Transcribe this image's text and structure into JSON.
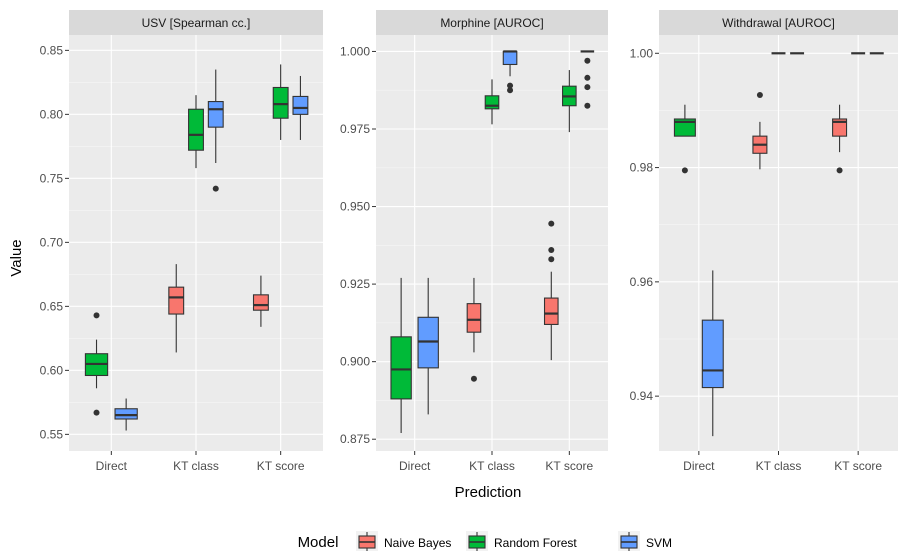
{
  "chart_data": {
    "type": "boxplot",
    "ylabel": "Value",
    "xlabel": "Prediction",
    "legend": {
      "title": "Model",
      "position": "bottom",
      "entries": [
        {
          "label": "Naive Bayes",
          "color": "#F8766D"
        },
        {
          "label": "Random Forest",
          "color": "#00BA38"
        },
        {
          "label": "SVM",
          "color": "#619CFF"
        }
      ]
    },
    "panels": [
      {
        "title": "USV [Spearman cc.]",
        "ylim": [
          0.537,
          0.862
        ],
        "yticks": [
          0.55,
          0.6,
          0.65,
          0.7,
          0.75,
          0.8,
          0.85
        ],
        "yticklabels": [
          "0.55",
          "0.60",
          "0.65",
          "0.70",
          "0.75",
          "0.80",
          "0.85"
        ],
        "categories": [
          "Direct",
          "KT class",
          "KT score"
        ],
        "boxes": [
          {
            "category": "Direct",
            "model": "Random Forest",
            "min": 0.586,
            "q1": 0.596,
            "median": 0.605,
            "q3": 0.613,
            "max": 0.624,
            "outliers": [
              0.643,
              0.567
            ]
          },
          {
            "category": "Direct",
            "model": "SVM",
            "min": 0.553,
            "q1": 0.562,
            "median": 0.565,
            "q3": 0.57,
            "max": 0.578,
            "outliers": []
          },
          {
            "category": "KT class",
            "model": "Naive Bayes",
            "min": 0.614,
            "q1": 0.644,
            "median": 0.657,
            "q3": 0.665,
            "max": 0.683,
            "outliers": []
          },
          {
            "category": "KT class",
            "model": "Random Forest",
            "min": 0.758,
            "q1": 0.772,
            "median": 0.784,
            "q3": 0.804,
            "max": 0.815,
            "outliers": []
          },
          {
            "category": "KT class",
            "model": "SVM",
            "min": 0.762,
            "q1": 0.79,
            "median": 0.804,
            "q3": 0.81,
            "max": 0.835,
            "outliers": [
              0.742
            ]
          },
          {
            "category": "KT score",
            "model": "Naive Bayes",
            "min": 0.634,
            "q1": 0.647,
            "median": 0.651,
            "q3": 0.659,
            "max": 0.674,
            "outliers": []
          },
          {
            "category": "KT score",
            "model": "Random Forest",
            "min": 0.78,
            "q1": 0.797,
            "median": 0.808,
            "q3": 0.821,
            "max": 0.839,
            "outliers": []
          },
          {
            "category": "KT score",
            "model": "SVM",
            "min": 0.78,
            "q1": 0.8,
            "median": 0.805,
            "q3": 0.814,
            "max": 0.83,
            "outliers": []
          }
        ]
      },
      {
        "title": "Morphine [AUROC]",
        "ylim": [
          0.8712,
          1.0053
        ],
        "yticks": [
          0.875,
          0.9,
          0.925,
          0.95,
          0.975,
          1.0
        ],
        "yticklabels": [
          "0.875",
          "0.900",
          "0.925",
          "0.950",
          "0.975",
          "1.000"
        ],
        "categories": [
          "Direct",
          "KT class",
          "KT score"
        ],
        "boxes": [
          {
            "category": "Direct",
            "model": "Random Forest",
            "min": 0.877,
            "q1": 0.888,
            "median": 0.8975,
            "q3": 0.908,
            "max": 0.927,
            "outliers": []
          },
          {
            "category": "Direct",
            "model": "SVM",
            "min": 0.883,
            "q1": 0.898,
            "median": 0.9065,
            "q3": 0.9143,
            "max": 0.927,
            "outliers": []
          },
          {
            "category": "KT class",
            "model": "Naive Bayes",
            "min": 0.903,
            "q1": 0.9095,
            "median": 0.9135,
            "q3": 0.9187,
            "max": 0.927,
            "outliers": [
              0.8945
            ]
          },
          {
            "category": "KT class",
            "model": "Random Forest",
            "min": 0.9765,
            "q1": 0.9815,
            "median": 0.9825,
            "q3": 0.9857,
            "max": 0.991,
            "outliers": []
          },
          {
            "category": "KT class",
            "model": "SVM",
            "min": 0.992,
            "q1": 0.9958,
            "median": 1.0,
            "q3": 1.0,
            "max": 1.0,
            "outliers": [
              0.9875,
              0.989
            ]
          },
          {
            "category": "KT score",
            "model": "Naive Bayes",
            "min": 0.9005,
            "q1": 0.912,
            "median": 0.9155,
            "q3": 0.9205,
            "max": 0.929,
            "outliers": [
              0.933,
              0.936,
              0.9445
            ]
          },
          {
            "category": "KT score",
            "model": "Random Forest",
            "min": 0.974,
            "q1": 0.9825,
            "median": 0.9855,
            "q3": 0.9888,
            "max": 0.994,
            "outliers": []
          },
          {
            "category": "KT score",
            "model": "SVM",
            "min": 1.0,
            "q1": 1.0,
            "median": 1.0,
            "q3": 1.0,
            "max": 1.0,
            "outliers": [
              0.997,
              0.9885,
              0.9915,
              0.9825
            ]
          }
        ]
      },
      {
        "title": "Withdrawal [AUROC]",
        "ylim": [
          0.9304,
          1.0032
        ],
        "yticks": [
          0.94,
          0.96,
          0.98,
          1.0
        ],
        "yticklabels": [
          "0.94",
          "0.96",
          "0.98",
          "1.00"
        ],
        "categories": [
          "Direct",
          "KT class",
          "KT score"
        ],
        "boxes": [
          {
            "category": "Direct",
            "model": "Random Forest",
            "min": 0.9855,
            "q1": 0.9855,
            "median": 0.988,
            "q3": 0.9885,
            "max": 0.991,
            "outliers": [
              0.9795
            ]
          },
          {
            "category": "Direct",
            "model": "SVM",
            "min": 0.933,
            "q1": 0.9415,
            "median": 0.9445,
            "q3": 0.9533,
            "max": 0.962,
            "outliers": []
          },
          {
            "category": "KT class",
            "model": "Naive Bayes",
            "min": 0.9797,
            "q1": 0.9825,
            "median": 0.984,
            "q3": 0.9855,
            "max": 0.988,
            "outliers": [
              0.9927
            ]
          },
          {
            "category": "KT class",
            "model": "Random Forest",
            "min": 1.0,
            "q1": 1.0,
            "median": 1.0,
            "q3": 1.0,
            "max": 1.0,
            "outliers": []
          },
          {
            "category": "KT class",
            "model": "SVM",
            "min": 1.0,
            "q1": 1.0,
            "median": 1.0,
            "q3": 1.0,
            "max": 1.0,
            "outliers": []
          },
          {
            "category": "KT score",
            "model": "Naive Bayes",
            "min": 0.9827,
            "q1": 0.9855,
            "median": 0.988,
            "q3": 0.9885,
            "max": 0.991,
            "outliers": [
              0.9795
            ]
          },
          {
            "category": "KT score",
            "model": "Random Forest",
            "min": 1.0,
            "q1": 1.0,
            "median": 1.0,
            "q3": 1.0,
            "max": 1.0,
            "outliers": []
          },
          {
            "category": "KT score",
            "model": "SVM",
            "min": 1.0,
            "q1": 1.0,
            "median": 1.0,
            "q3": 1.0,
            "max": 1.0,
            "outliers": []
          }
        ]
      }
    ]
  }
}
